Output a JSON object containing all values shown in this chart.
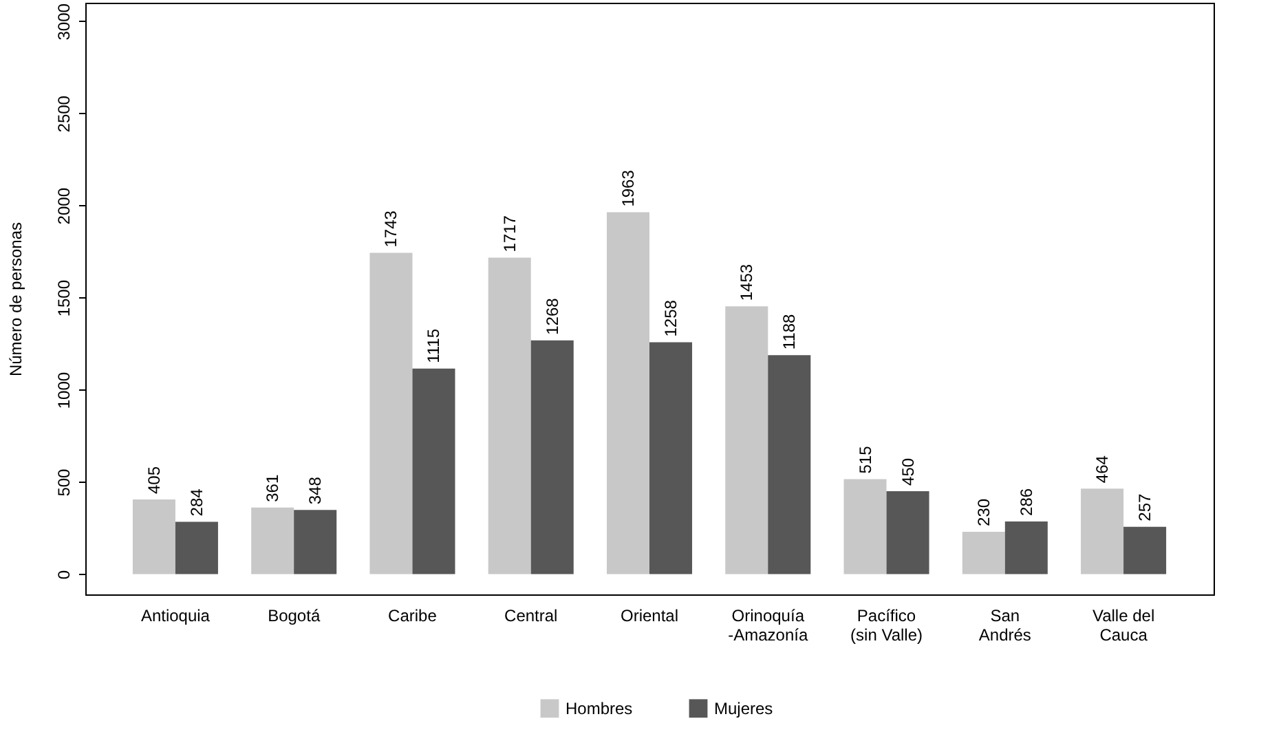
{
  "chart_data": {
    "type": "bar",
    "ylabel": "Número de personas",
    "categories": [
      "Antioquia",
      "Bogotá",
      "Caribe",
      "Central",
      "Oriental",
      "Orinoquía\n-Amazonía",
      "Pacífico\n(sin Valle)",
      "San\nAndrés",
      "Valle del\nCauca"
    ],
    "series": [
      {
        "name": "Hombres",
        "color": "#c8c8c8",
        "values": [
          405,
          361,
          1743,
          1717,
          1963,
          1453,
          515,
          230,
          464
        ]
      },
      {
        "name": "Mujeres",
        "color": "#575757",
        "values": [
          284,
          348,
          1115,
          1268,
          1258,
          1188,
          450,
          286,
          257
        ]
      }
    ],
    "ylim": [
      -110,
      3100
    ],
    "yticks": [
      0,
      500,
      1000,
      1500,
      2000,
      2500,
      3000
    ],
    "data_labels": true,
    "legend": "bottom",
    "grid": false
  }
}
